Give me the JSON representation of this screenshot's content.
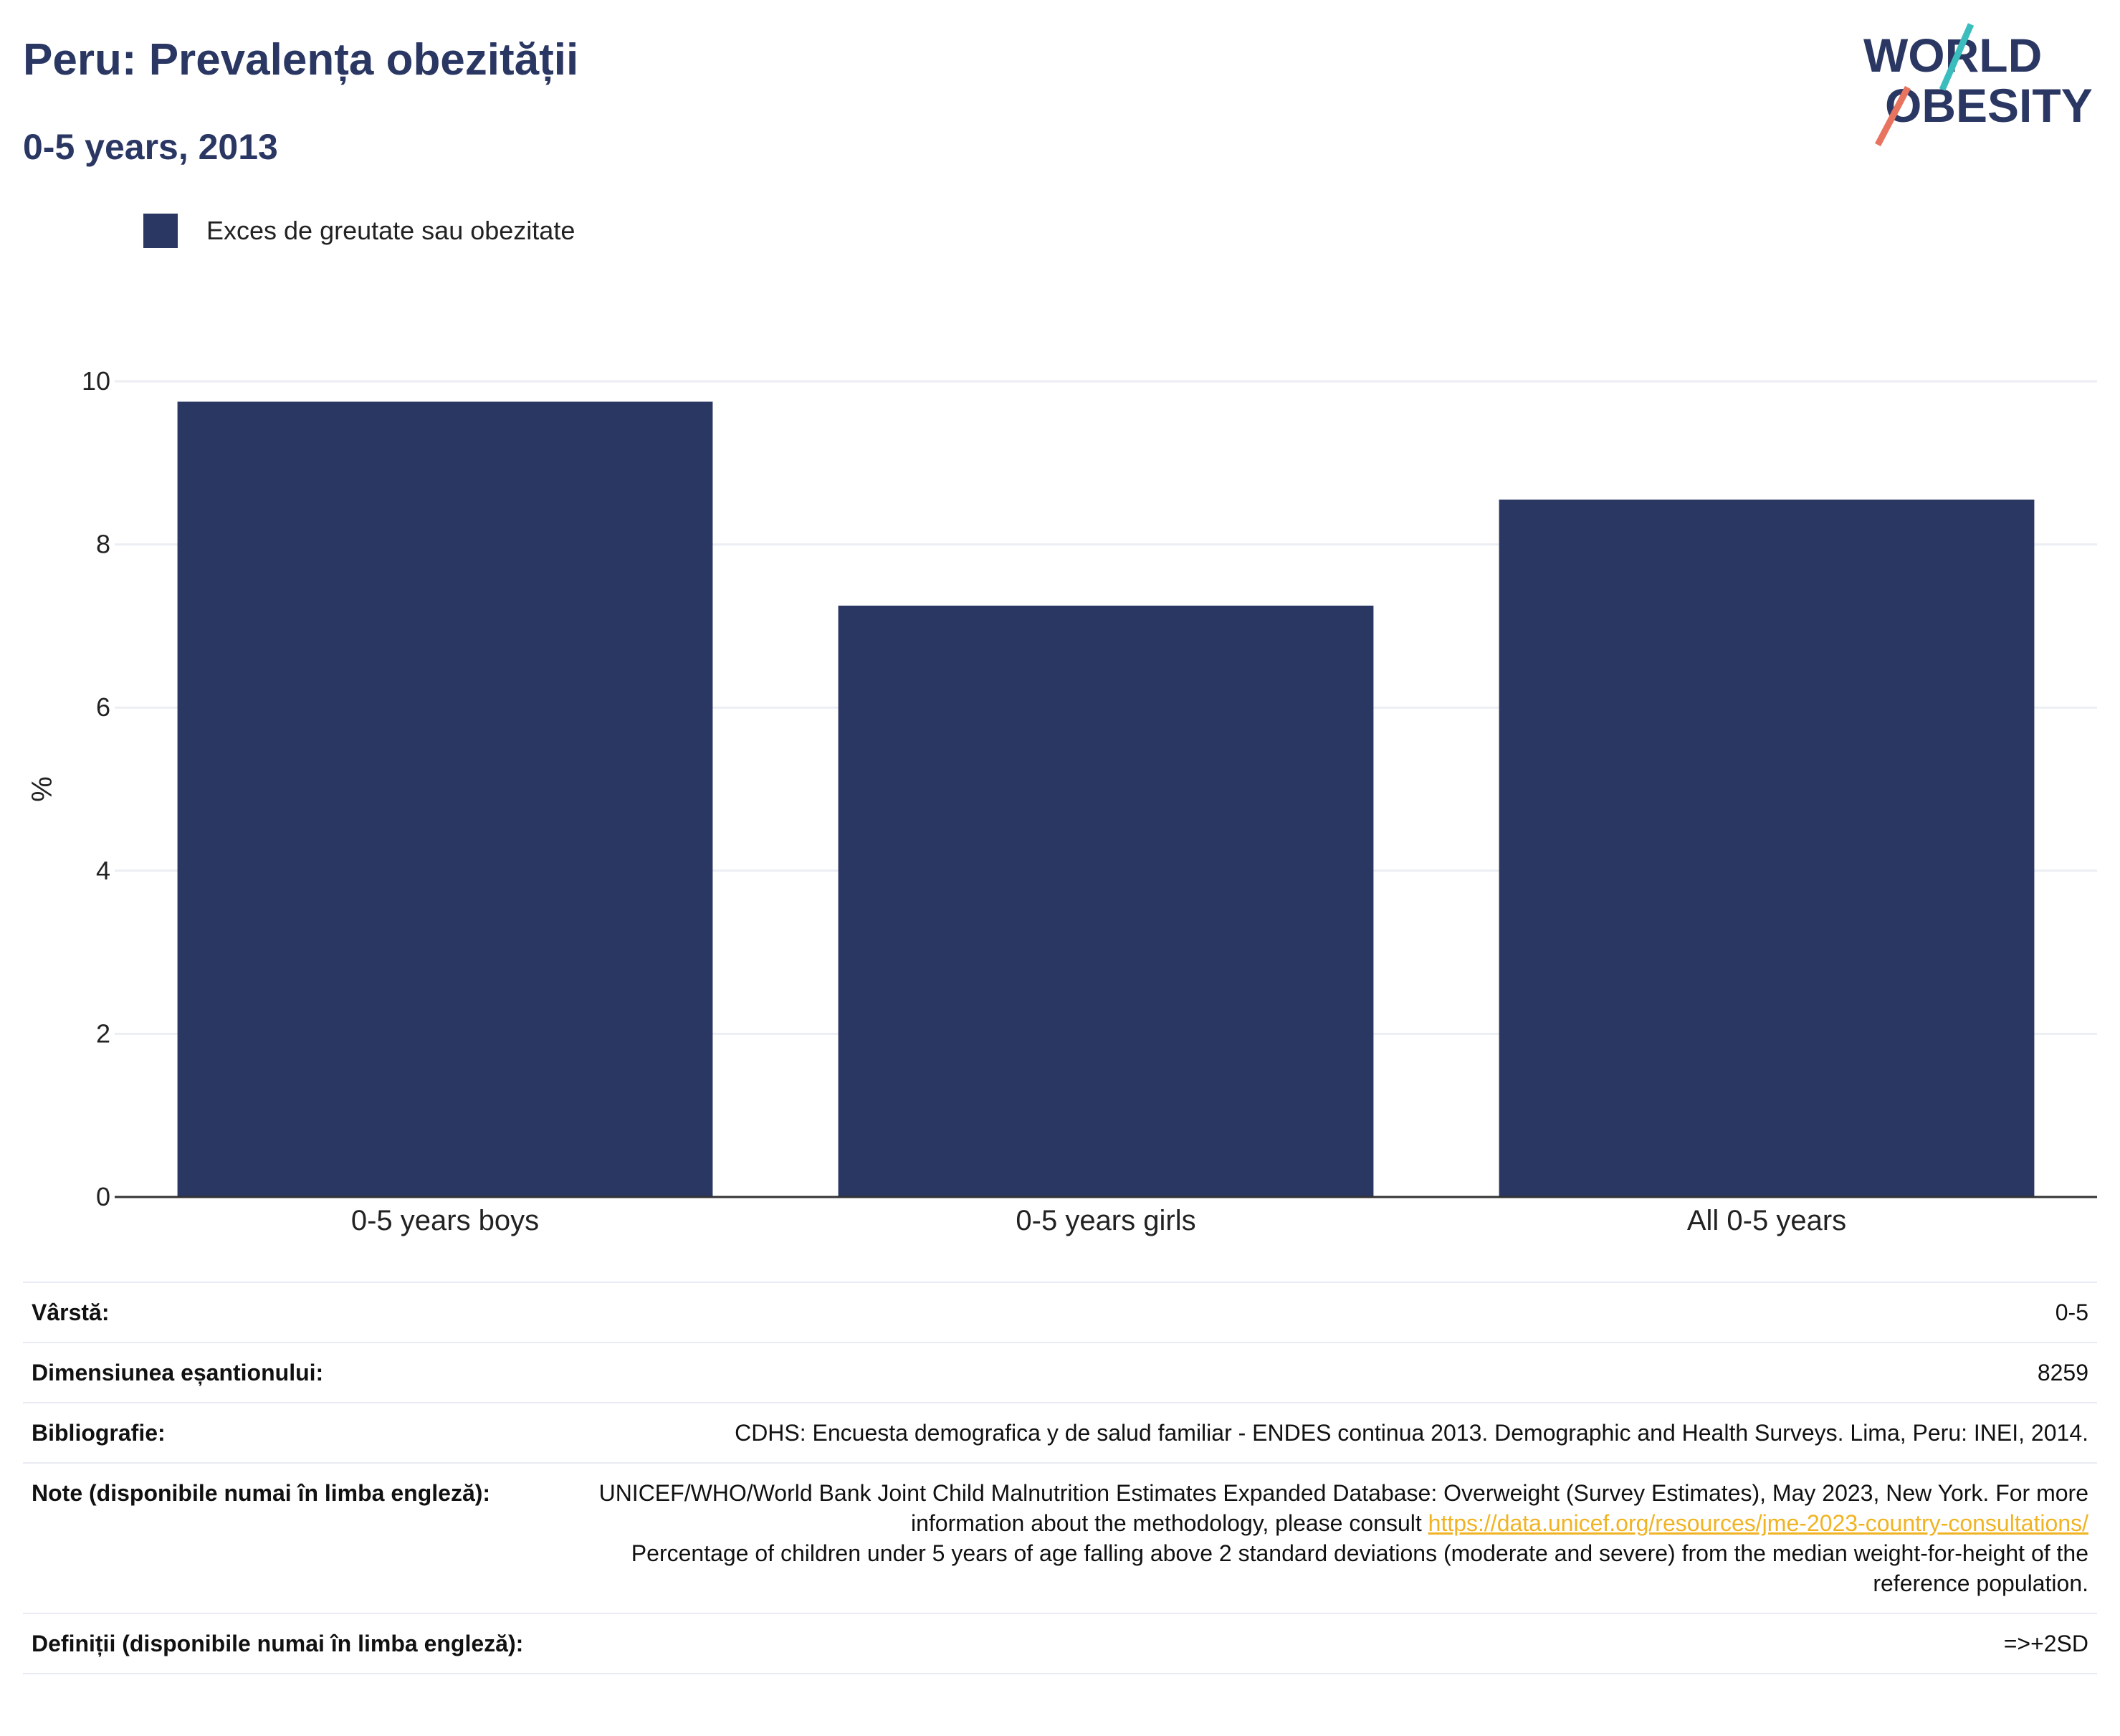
{
  "header": {
    "title": "Peru: Prevalența obezității",
    "subtitle": "0-5 years, 2013"
  },
  "logo": {
    "line1": "WORLD",
    "line2": "OBESITY"
  },
  "colors": {
    "bar": "#2b3763",
    "accent_teal": "#3bbdbd",
    "accent_coral": "#e8735e",
    "link": "#f0b323"
  },
  "chart_data": {
    "type": "bar",
    "categories": [
      "0-5 years boys",
      "0-5 years girls",
      "All 0-5 years"
    ],
    "series": [
      {
        "name": "Exces de greutate sau obezitate",
        "values": [
          9.75,
          7.25,
          8.55
        ]
      }
    ],
    "ylabel": "%",
    "xlabel": "",
    "ylim": [
      0,
      10
    ],
    "yticks": [
      0,
      2,
      4,
      6,
      8,
      10
    ],
    "grid": true,
    "legend": "top-left"
  },
  "meta": {
    "age_label": "Vârstă:",
    "age_value": "0-5",
    "sample_label": "Dimensiunea eșantionului:",
    "sample_value": "8259",
    "bib_label": "Bibliografie:",
    "bib_value": "CDHS: Encuesta demografica y de salud familiar - ENDES continua 2013. Demographic and Health Surveys. Lima, Peru: INEI, 2014.",
    "notes_label": "Note (disponibile numai în limba engleză):",
    "notes_text1": "UNICEF/WHO/World Bank Joint Child Malnutrition Estimates Expanded Database: Overweight (Survey Estimates), May 2023, New York. For more information about the methodology, please consult ",
    "notes_link": "https://data.unicef.org/resources/jme-2023-country-consultations/",
    "notes_text2": "Percentage of children under 5 years of age falling above 2 standard deviations (moderate and severe) from the median weight-for-height of the reference population.",
    "def_label": "Definiții (disponibile numai în limba engleză):",
    "def_value": "=>+2SD"
  }
}
